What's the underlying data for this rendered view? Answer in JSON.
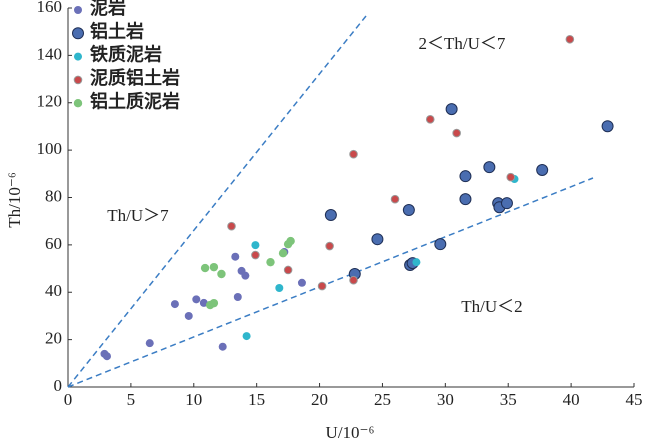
{
  "chart_data": {
    "type": "scatter",
    "x_label": "U/10⁻⁶",
    "y_label": "Th/10⁻⁶",
    "xlim": [
      0,
      45
    ],
    "ylim": [
      0,
      160
    ],
    "xticks": [
      0,
      5,
      10,
      15,
      20,
      25,
      30,
      35,
      40,
      45
    ],
    "yticks": [
      0,
      20,
      40,
      60,
      80,
      100,
      120,
      140,
      160
    ],
    "annotations": [
      "2＜Th/U＜7",
      "Th/U＞7",
      "Th/U＜2"
    ],
    "legend": "upper left",
    "series": [
      {
        "name": "泥岩",
        "color": "#6b70b8",
        "x": [
          2.9,
          3.1,
          6.5,
          8.5,
          9.6,
          10.2,
          10.8,
          12.3,
          13.3,
          13.5,
          13.8,
          14.1,
          17.2,
          18.6
        ],
        "y": [
          14,
          13,
          18.5,
          35,
          30,
          37,
          35.5,
          17,
          55,
          38,
          49,
          47,
          57,
          44
        ]
      },
      {
        "name": "铝土岩",
        "color": "#4a6db0",
        "x": [
          20.9,
          24.6,
          27.1,
          22.8,
          27.2,
          27.4,
          29.6,
          30.5,
          31.6,
          31.6,
          33.5,
          34.2,
          34.3,
          34.9,
          37.7,
          42.9
        ],
        "y": [
          72.6,
          62.4,
          74.7,
          47.7,
          51.5,
          52.3,
          60.3,
          117.3,
          89,
          79.3,
          92.8,
          77.6,
          75.9,
          77.6,
          91.6,
          110.1
        ]
      },
      {
        "name": "铁质泥岩",
        "color": "#2fb6cc",
        "x": [
          14.9,
          16.8,
          14.2,
          27.7,
          35.5
        ],
        "y": [
          59.9,
          41.8,
          21.5,
          52.7,
          87.8
        ]
      },
      {
        "name": "泥质铝土岩",
        "color": "#c9494b",
        "x": [
          39.9,
          28.8,
          30.9,
          22.7,
          35.2,
          26,
          13,
          20.8,
          14.9,
          17.5,
          20.2,
          22.7
        ],
        "y": [
          146.8,
          113,
          107.2,
          98.3,
          88.6,
          79.3,
          67.9,
          59.5,
          55.7,
          49.4,
          42.6,
          45.1
        ]
      },
      {
        "name": "铝土质泥岩",
        "color": "#7dc47a",
        "x": [
          10.9,
          11.6,
          12.2,
          11.3,
          11.6,
          16.1,
          17.1,
          17.5,
          17.7
        ],
        "y": [
          50.2,
          50.6,
          47.7,
          34.6,
          35.4,
          52.7,
          56.5,
          60.3,
          61.6
        ]
      }
    ]
  }
}
